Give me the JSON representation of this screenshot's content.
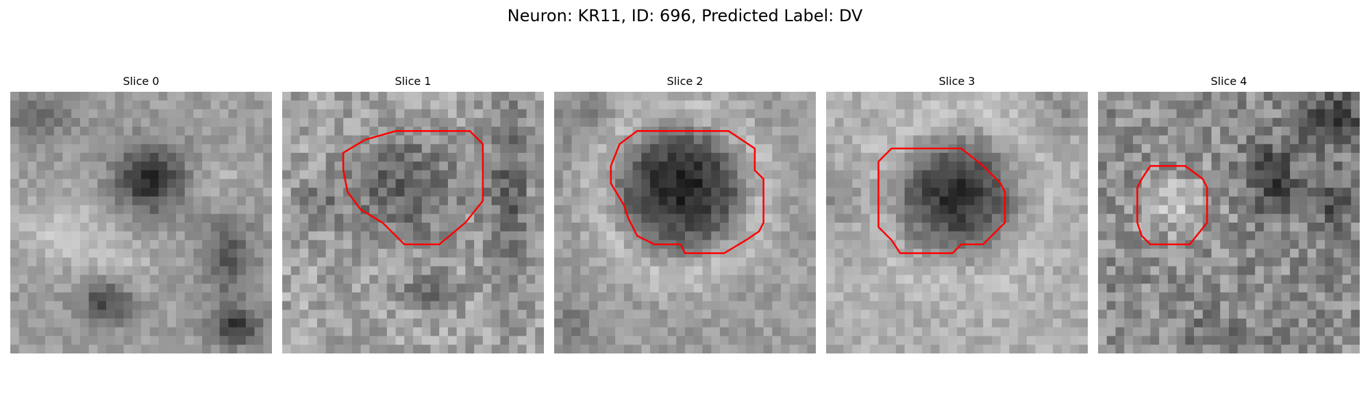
{
  "figure": {
    "title": "Neuron: KR11, ID: 696, Predicted Label: DV"
  },
  "panels": [
    {
      "label": "Slice 0",
      "contour": null
    },
    {
      "label": "Slice 1",
      "contour": [
        [
          13,
          4.5
        ],
        [
          21.5,
          4.5
        ],
        [
          23,
          6
        ],
        [
          23,
          10
        ],
        [
          23,
          12.5
        ],
        [
          21,
          15
        ],
        [
          18,
          17.5
        ],
        [
          14,
          17.5
        ],
        [
          12.5,
          16
        ],
        [
          11.5,
          15
        ],
        [
          9,
          13.5
        ],
        [
          7.5,
          11.5
        ],
        [
          7,
          9
        ],
        [
          7,
          7
        ],
        [
          9.5,
          5.5
        ]
      ]
    },
    {
      "label": "Slice 2",
      "contour": [
        [
          9.5,
          4.5
        ],
        [
          20,
          4.5
        ],
        [
          23,
          6.5
        ],
        [
          23,
          9
        ],
        [
          24,
          10
        ],
        [
          24,
          15
        ],
        [
          23.5,
          16
        ],
        [
          22,
          17
        ],
        [
          19.5,
          18.5
        ],
        [
          15,
          18.5
        ],
        [
          14.5,
          17.5
        ],
        [
          11.5,
          17.5
        ],
        [
          9.5,
          16.5
        ],
        [
          8.5,
          14.5
        ],
        [
          8,
          13
        ],
        [
          6.5,
          10.5
        ],
        [
          6.5,
          8.5
        ],
        [
          7.5,
          6
        ]
      ]
    },
    {
      "label": "Slice 3",
      "contour": [
        [
          7.5,
          6.5
        ],
        [
          15.5,
          6.5
        ],
        [
          18,
          8.5
        ],
        [
          20,
          10.5
        ],
        [
          20.5,
          11.5
        ],
        [
          20.5,
          15
        ],
        [
          19.5,
          16
        ],
        [
          18,
          17.5
        ],
        [
          15.5,
          17.5
        ],
        [
          14.5,
          18.5
        ],
        [
          8.5,
          18.5
        ],
        [
          7.5,
          17
        ],
        [
          6,
          15.5
        ],
        [
          6,
          8
        ]
      ]
    },
    {
      "label": "Slice 4",
      "contour": [
        [
          6,
          8.5
        ],
        [
          10,
          8.5
        ],
        [
          12,
          10
        ],
        [
          12.5,
          11
        ],
        [
          12.5,
          15
        ],
        [
          10.5,
          17.5
        ],
        [
          6,
          17.5
        ],
        [
          5,
          16.5
        ],
        [
          4.5,
          15
        ],
        [
          4.5,
          11
        ],
        [
          5,
          10
        ]
      ]
    }
  ],
  "colors": {
    "contour": "#ff0000",
    "background": "#ffffff"
  }
}
